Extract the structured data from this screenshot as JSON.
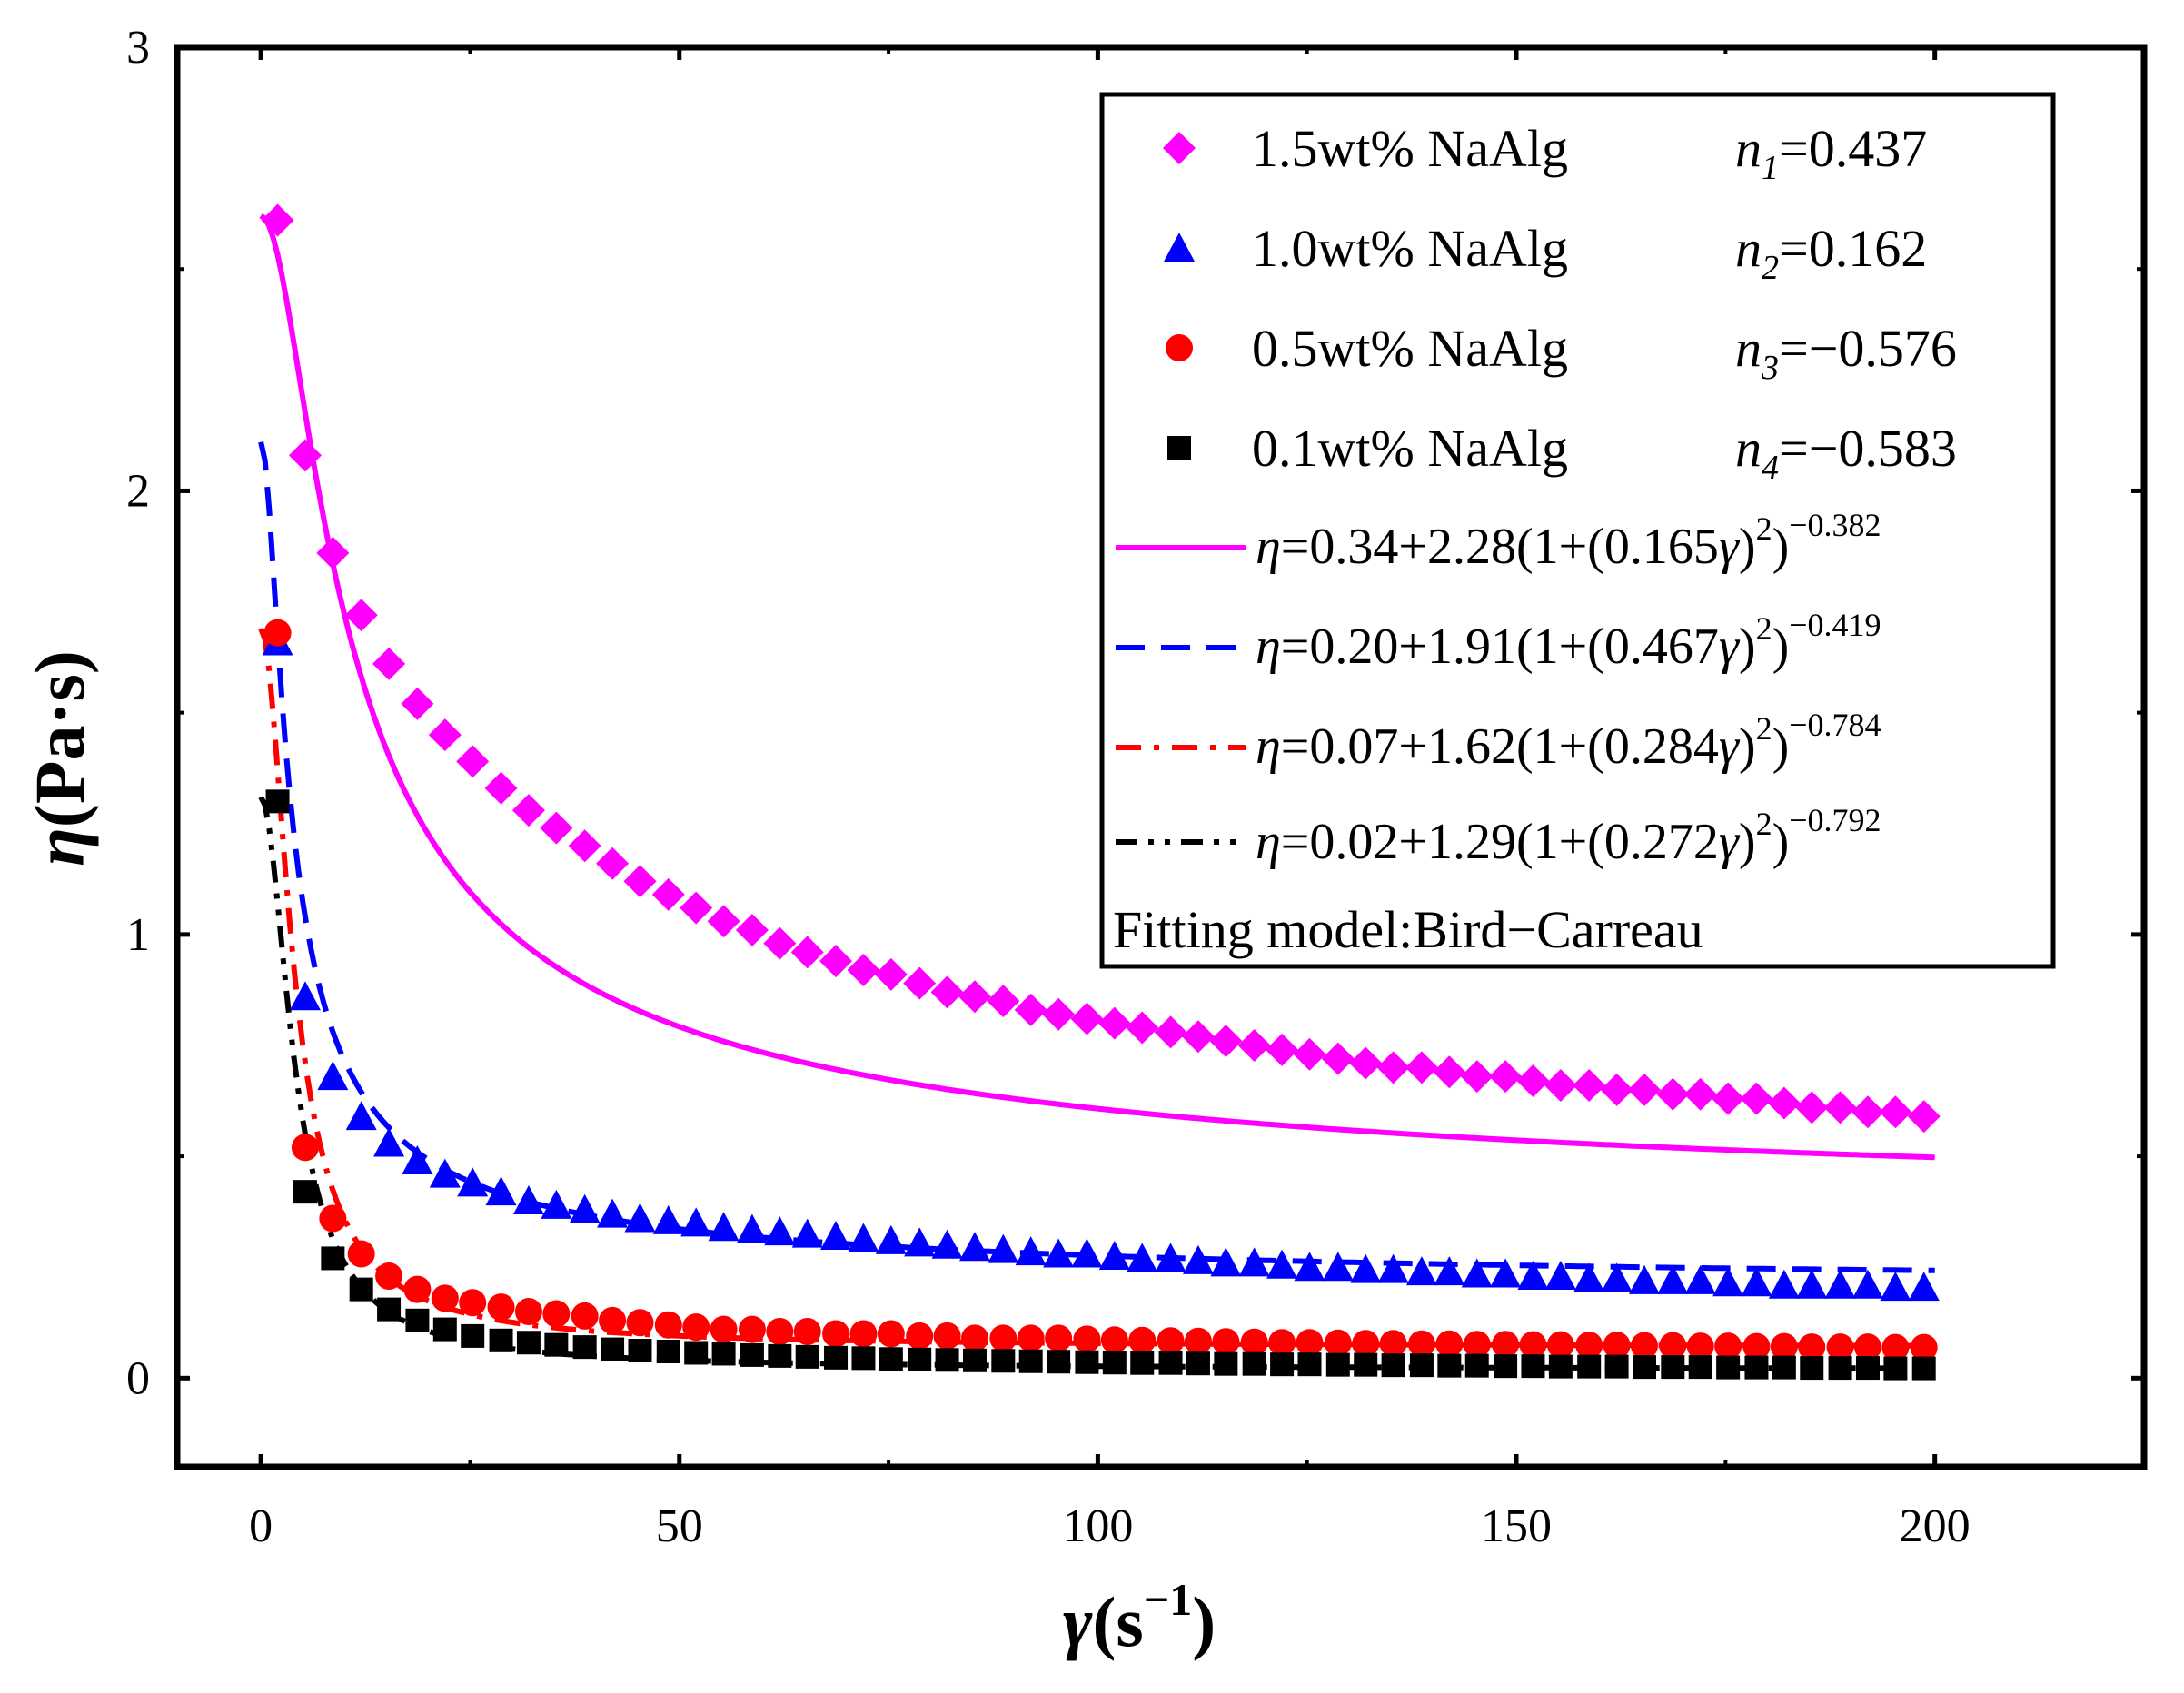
{
  "chart_data": {
    "type": "scatter",
    "title": "",
    "xlabel": {
      "symbol": "γ",
      "unit_prefix": "(s",
      "unit_sup": "−1",
      "unit_suffix": ")"
    },
    "ylabel": {
      "symbol": "η",
      "unit": "(Pa·s)"
    },
    "xlim": [
      -10,
      225
    ],
    "ylim": [
      -0.2,
      3.0
    ],
    "xticks": [
      0,
      50,
      100,
      150,
      200
    ],
    "xtick_labels": [
      "0",
      "50",
      "100",
      "150",
      "200"
    ],
    "yticks": [
      0,
      1,
      2,
      3
    ],
    "ytick_labels": [
      "0",
      "1",
      "2",
      "3"
    ],
    "legend_position": "top-right",
    "series": [
      {
        "name": "1.5wt% NaAlg",
        "n_symbol": "n",
        "n_sub": "1",
        "n_value": "=0.437",
        "color": "#ff00ff",
        "marker": "diamond",
        "x": [
          2,
          5.3,
          8.6,
          12,
          15.3,
          18.7,
          22,
          25.3,
          28.7,
          32,
          35.3,
          38.7,
          42,
          45.3,
          48.7,
          52,
          55.3,
          58.7,
          62,
          65.3,
          68.7,
          72,
          75.3,
          78.7,
          82,
          85.3,
          88.7,
          92,
          95.3,
          98.7,
          102,
          105.3,
          108.7,
          112,
          115.3,
          118.7,
          122,
          125.3,
          128.7,
          132,
          135.3,
          138.7,
          142,
          145.3,
          148.7,
          152,
          155.3,
          158.7,
          162,
          165.3,
          168.7,
          172,
          175.3,
          178.7,
          182,
          185.3,
          188.7,
          192,
          195.3,
          198.7
        ],
        "y": [
          2.61,
          2.08,
          1.86,
          1.72,
          1.61,
          1.52,
          1.45,
          1.39,
          1.33,
          1.28,
          1.24,
          1.2,
          1.16,
          1.12,
          1.09,
          1.06,
          1.03,
          1.01,
          0.98,
          0.96,
          0.94,
          0.92,
          0.91,
          0.89,
          0.87,
          0.86,
          0.85,
          0.83,
          0.82,
          0.81,
          0.8,
          0.79,
          0.78,
          0.77,
          0.76,
          0.75,
          0.74,
          0.73,
          0.72,
          0.71,
          0.7,
          0.7,
          0.69,
          0.68,
          0.68,
          0.67,
          0.66,
          0.66,
          0.65,
          0.65,
          0.64,
          0.64,
          0.63,
          0.63,
          0.62,
          0.61,
          0.61,
          0.6,
          0.6,
          0.59
        ]
      },
      {
        "name": "1.0wt% NaAlg",
        "n_symbol": "n",
        "n_sub": "2",
        "n_value": "=0.162",
        "color": "#0000ff",
        "marker": "triangle",
        "x": [
          2,
          5.3,
          8.6,
          12,
          15.3,
          18.7,
          22,
          25.3,
          28.7,
          32,
          35.3,
          38.7,
          42,
          45.3,
          48.7,
          52,
          55.3,
          58.7,
          62,
          65.3,
          68.7,
          72,
          75.3,
          78.7,
          82,
          85.3,
          88.7,
          92,
          95.3,
          98.7,
          102,
          105.3,
          108.7,
          112,
          115.3,
          118.7,
          122,
          125.3,
          128.7,
          132,
          135.3,
          138.7,
          142,
          145.3,
          148.7,
          152,
          155.3,
          158.7,
          162,
          165.3,
          168.7,
          172,
          175.3,
          178.7,
          182,
          185.3,
          188.7,
          192,
          195.3,
          198.7
        ],
        "y": [
          1.66,
          0.86,
          0.68,
          0.59,
          0.53,
          0.49,
          0.46,
          0.44,
          0.42,
          0.4,
          0.39,
          0.38,
          0.37,
          0.36,
          0.355,
          0.35,
          0.34,
          0.335,
          0.33,
          0.325,
          0.32,
          0.315,
          0.31,
          0.305,
          0.3,
          0.295,
          0.29,
          0.285,
          0.28,
          0.28,
          0.275,
          0.27,
          0.27,
          0.265,
          0.26,
          0.26,
          0.255,
          0.25,
          0.25,
          0.245,
          0.245,
          0.24,
          0.24,
          0.235,
          0.235,
          0.23,
          0.23,
          0.225,
          0.225,
          0.22,
          0.22,
          0.22,
          0.215,
          0.215,
          0.21,
          0.21,
          0.21,
          0.21,
          0.205,
          0.205
        ]
      },
      {
        "name": "0.5wt% NaAlg",
        "n_symbol": "n",
        "n_sub": "3",
        "n_value": "=−0.576",
        "color": "#ff0000",
        "marker": "circle",
        "x": [
          2,
          5.3,
          8.6,
          12,
          15.3,
          18.7,
          22,
          25.3,
          28.7,
          32,
          35.3,
          38.7,
          42,
          45.3,
          48.7,
          52,
          55.3,
          58.7,
          62,
          65.3,
          68.7,
          72,
          75.3,
          78.7,
          82,
          85.3,
          88.7,
          92,
          95.3,
          98.7,
          102,
          105.3,
          108.7,
          112,
          115.3,
          118.7,
          122,
          125.3,
          128.7,
          132,
          135.3,
          138.7,
          142,
          145.3,
          148.7,
          152,
          155.3,
          158.7,
          162,
          165.3,
          168.7,
          172,
          175.3,
          178.7,
          182,
          185.3,
          188.7,
          192,
          195.3,
          198.7
        ],
        "y": [
          1.68,
          0.52,
          0.36,
          0.28,
          0.23,
          0.2,
          0.18,
          0.17,
          0.16,
          0.15,
          0.145,
          0.14,
          0.13,
          0.125,
          0.12,
          0.115,
          0.11,
          0.11,
          0.105,
          0.105,
          0.1,
          0.1,
          0.1,
          0.095,
          0.095,
          0.09,
          0.09,
          0.09,
          0.09,
          0.088,
          0.086,
          0.085,
          0.084,
          0.083,
          0.082,
          0.081,
          0.08,
          0.08,
          0.079,
          0.078,
          0.078,
          0.077,
          0.077,
          0.076,
          0.076,
          0.075,
          0.075,
          0.074,
          0.074,
          0.073,
          0.073,
          0.072,
          0.072,
          0.071,
          0.071,
          0.07,
          0.07,
          0.07,
          0.069,
          0.069
        ]
      },
      {
        "name": "0.1wt% NaAlg",
        "n_symbol": "n",
        "n_sub": "4",
        "n_value": "=−0.583",
        "color": "#000000",
        "marker": "square",
        "x": [
          2,
          5.3,
          8.6,
          12,
          15.3,
          18.7,
          22,
          25.3,
          28.7,
          32,
          35.3,
          38.7,
          42,
          45.3,
          48.7,
          52,
          55.3,
          58.7,
          62,
          65.3,
          68.7,
          72,
          75.3,
          78.7,
          82,
          85.3,
          88.7,
          92,
          95.3,
          98.7,
          102,
          105.3,
          108.7,
          112,
          115.3,
          118.7,
          122,
          125.3,
          128.7,
          132,
          135.3,
          138.7,
          142,
          145.3,
          148.7,
          152,
          155.3,
          158.7,
          162,
          165.3,
          168.7,
          172,
          175.3,
          178.7,
          182,
          185.3,
          188.7,
          192,
          195.3,
          198.7
        ],
        "y": [
          1.3,
          0.42,
          0.27,
          0.2,
          0.155,
          0.13,
          0.11,
          0.095,
          0.085,
          0.08,
          0.075,
          0.07,
          0.065,
          0.062,
          0.06,
          0.057,
          0.055,
          0.052,
          0.05,
          0.048,
          0.046,
          0.045,
          0.043,
          0.042,
          0.041,
          0.04,
          0.039,
          0.038,
          0.037,
          0.036,
          0.035,
          0.034,
          0.034,
          0.033,
          0.032,
          0.032,
          0.031,
          0.031,
          0.03,
          0.03,
          0.029,
          0.029,
          0.028,
          0.028,
          0.027,
          0.027,
          0.026,
          0.026,
          0.026,
          0.025,
          0.025,
          0.025,
          0.024,
          0.024,
          0.024,
          0.023,
          0.023,
          0.023,
          0.022,
          0.022
        ]
      }
    ],
    "fits": [
      {
        "color": "#ff00ff",
        "dash": "solid",
        "eta_inf": 0.34,
        "eta_span": 2.28,
        "lambda": 0.165,
        "exponent": -0.382,
        "lhs": "η",
        "text_main": "=0.34+2.28(1+(0.165",
        "gamma": "γ",
        "text_close": ")",
        "sq": "2",
        "text_end": ")",
        "exp_text": "−0.382"
      },
      {
        "color": "#0000ff",
        "dash": "dash",
        "eta_inf": 0.2,
        "eta_span": 1.91,
        "lambda": 0.467,
        "exponent": -0.419,
        "lhs": "η",
        "text_main": "=0.20+1.91(1+(0.467",
        "gamma": "γ",
        "text_close": ")",
        "sq": "2",
        "text_end": ")",
        "exp_text": "−0.419"
      },
      {
        "color": "#ff0000",
        "dash": "dashdot",
        "eta_inf": 0.07,
        "eta_span": 1.62,
        "lambda": 0.284,
        "exponent": -0.784,
        "lhs": "η",
        "text_main": "=0.07+1.62(1+(0.284",
        "gamma": "γ",
        "text_close": ")",
        "sq": "2",
        "text_end": ")",
        "exp_text": "−0.784"
      },
      {
        "color": "#000000",
        "dash": "dashdotdot",
        "eta_inf": 0.02,
        "eta_span": 1.29,
        "lambda": 0.272,
        "exponent": -0.792,
        "lhs": "η",
        "text_main": "=0.02+1.29(1+(0.272",
        "gamma": "γ",
        "text_close": ")",
        "sq": "2",
        "text_end": ")",
        "exp_text": "−0.792"
      }
    ],
    "fit_x_range": [
      0,
      200
    ],
    "fitting_note": "Fitting model:Bird−Carreau"
  }
}
